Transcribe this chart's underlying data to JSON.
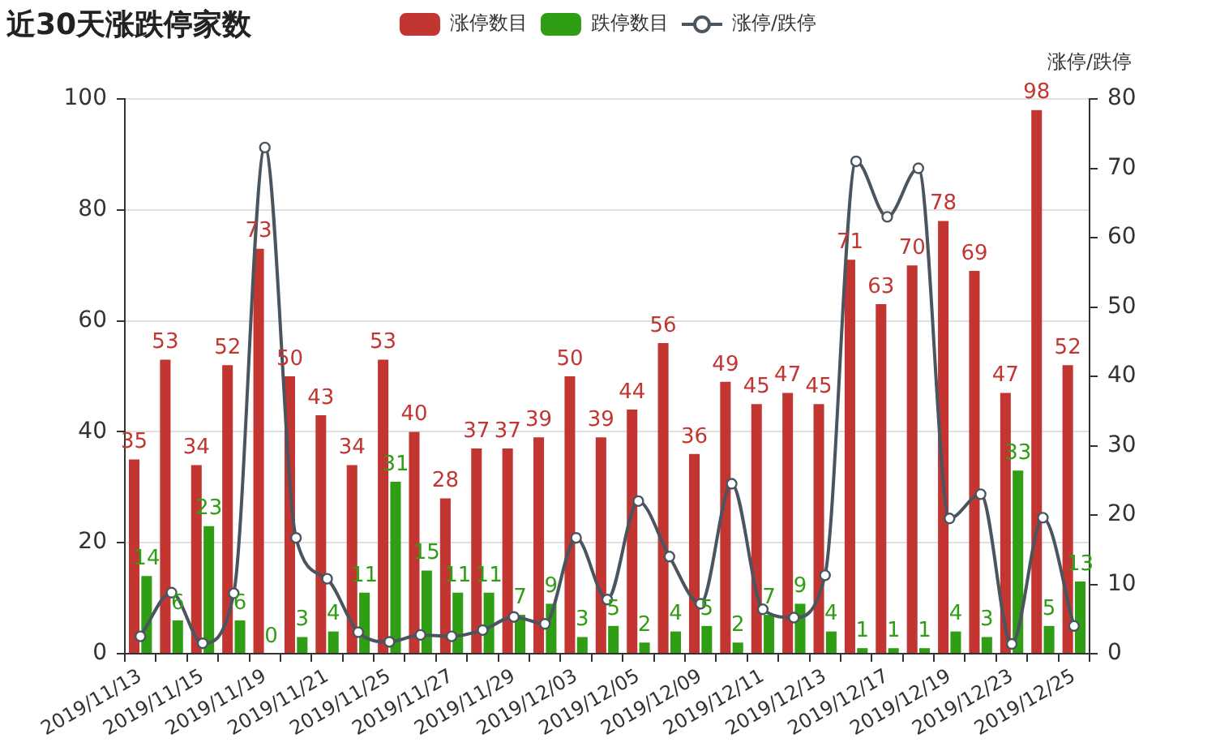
{
  "chart_data": {
    "type": "bar",
    "title": "近30天涨跌停家数",
    "y2label": "涨停/跌停",
    "categories": [
      "2019/11/13",
      null,
      "2019/11/15",
      null,
      "2019/11/19",
      null,
      "2019/11/21",
      null,
      "2019/11/25",
      null,
      "2019/11/27",
      null,
      "2019/11/29",
      null,
      "2019/12/03",
      null,
      "2019/12/05",
      null,
      "2019/12/09",
      null,
      "2019/12/11",
      null,
      "2019/12/13",
      null,
      "2019/12/17",
      null,
      "2019/12/19",
      null,
      "2019/12/23",
      null,
      "2019/12/25"
    ],
    "series": [
      {
        "name": "涨停数目",
        "color": "#c23531",
        "values": [
          35,
          53,
          34,
          52,
          73,
          50,
          43,
          34,
          53,
          40,
          28,
          37,
          37,
          39,
          50,
          39,
          44,
          56,
          36,
          49,
          45,
          47,
          45,
          71,
          63,
          70,
          78,
          69,
          47,
          98,
          52
        ],
        "value_labels": [
          "35",
          "53",
          "34",
          "52",
          "73",
          "50",
          "43",
          "34",
          "53",
          "40",
          "28",
          "37",
          "37",
          "39",
          "50",
          "39",
          "44",
          "56",
          "36",
          "49",
          "45",
          "47",
          "45",
          "71",
          "63",
          "70",
          "78",
          "69",
          "47",
          "98",
          "52"
        ]
      },
      {
        "name": "跌停数目",
        "color": "#2f9e15",
        "values": [
          14,
          6,
          23,
          6,
          0,
          3,
          4,
          11,
          31,
          15,
          11,
          11,
          7,
          9,
          3,
          5,
          2,
          4,
          5,
          2,
          7,
          9,
          4,
          1,
          1,
          1,
          4,
          3,
          33,
          5,
          13
        ],
        "value_labels": [
          "14",
          "6",
          "23",
          "6",
          "0",
          "3",
          "4",
          "11",
          "31",
          "15",
          "11",
          "11",
          "7",
          "9",
          "3",
          "5",
          "2",
          "4",
          "5",
          "2",
          "7",
          "9",
          "4",
          "1",
          "1",
          "1",
          "4",
          "3",
          "33",
          "5",
          "13"
        ]
      },
      {
        "name": "涨停/跌停",
        "type": "line",
        "axis": "y2",
        "color": "#4a5560",
        "values": [
          2.5,
          8.8,
          1.5,
          8.7,
          73,
          16.7,
          10.8,
          3.1,
          1.7,
          2.7,
          2.5,
          3.4,
          5.3,
          4.3,
          16.7,
          7.8,
          22,
          14,
          7.2,
          24.5,
          6.4,
          5.2,
          11.3,
          71,
          63,
          70,
          19.5,
          23,
          1.4,
          19.6,
          4
        ]
      }
    ],
    "ylim": [
      0,
      100
    ],
    "yticks": [
      0,
      20,
      40,
      60,
      80,
      100
    ],
    "y2lim": [
      0,
      80
    ],
    "y2ticks": [
      0,
      10,
      20,
      30,
      40,
      50,
      60,
      70,
      80
    ],
    "grid": "y",
    "legend": "top",
    "marker": "circle",
    "line_style": "solid"
  }
}
